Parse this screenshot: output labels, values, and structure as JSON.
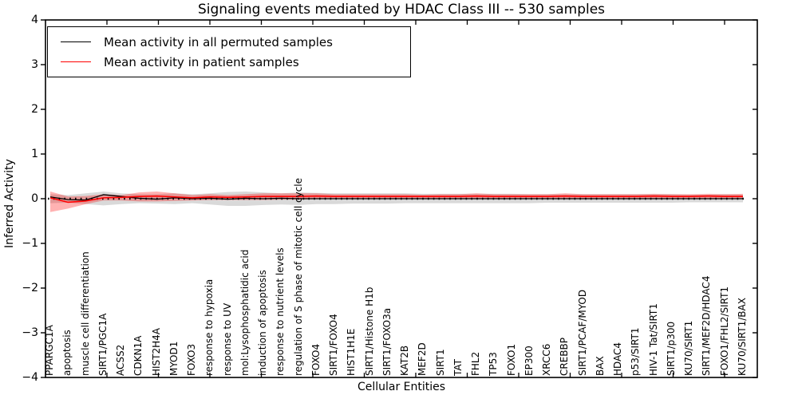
{
  "figure": {
    "title": "Signaling events mediated by HDAC Class III -- 530 samples",
    "xlabel": "Cellular Entities",
    "ylabel": "Inferred Activity"
  },
  "legend": {
    "entries": [
      {
        "label": "Mean activity in all permuted samples",
        "color": "#000000"
      },
      {
        "label": "Mean activity in patient samples",
        "color": "#ff0000"
      }
    ]
  },
  "chart_data": {
    "type": "line",
    "title": "Signaling events mediated by HDAC Class III -- 530 samples",
    "xlabel": "Cellular Entities",
    "ylabel": "Inferred Activity",
    "ylim": [
      -4,
      4
    ],
    "yticks": [
      -4,
      -3,
      -2,
      -1,
      0,
      1,
      2,
      3,
      4
    ],
    "grid": false,
    "zero_line": true,
    "legend_position": "upper left",
    "categories": [
      "PPARGC1A",
      "apoptosis",
      "muscle cell differentiation",
      "SIRT1/PGC1A",
      "ACSS2",
      "CDKN1A",
      "HIST2H4A",
      "MYOD1",
      "FOXO3",
      "response to hypoxia",
      "response to UV",
      "mol:Lysophosphatidic acid",
      "induction of apoptosis",
      "response to nutrient levels",
      "regulation of S phase of mitotic cell cycle",
      "FOXO4",
      "SIRT1/FOXO4",
      "HIST1H1E",
      "SIRT1/Histone H1b",
      "SIRT1/FOXO3a",
      "KAT2B",
      "MEF2D",
      "SIRT1",
      "TAT",
      "FHL2",
      "TP53",
      "FOXO1",
      "EP300",
      "XRCC6",
      "CREBBP",
      "SIRT1/PCAF/MYOD",
      "BAX",
      "HDAC4",
      "p53/SIRT1",
      "HIV-1 Tat/SIRT1",
      "SIRT1/p300",
      "KU70/SIRT1",
      "SIRT1/MEF2D/HDAC4",
      "FOXO1/FHL2/SIRT1",
      "KU70/SIRT1/BAX"
    ],
    "series": [
      {
        "name": "Mean activity in all permuted samples",
        "color": "#000000",
        "values": [
          0.04,
          -0.02,
          -0.03,
          0.09,
          0.05,
          0.01,
          -0.01,
          0.02,
          0.0,
          0.01,
          -0.01,
          0.01,
          0.0,
          0.01,
          0.0,
          0.0,
          0.0,
          0.0,
          0.0,
          0.0,
          0.0,
          0.0,
          0.0,
          0.0,
          0.0,
          0.0,
          0.0,
          0.0,
          0.0,
          0.0,
          0.0,
          0.0,
          0.0,
          0.0,
          0.0,
          0.0,
          0.0,
          0.0,
          0.0,
          0.0
        ]
      },
      {
        "name": "Mean activity in patient samples",
        "color": "#ff0000",
        "values": [
          0.02,
          -0.08,
          -0.05,
          0.02,
          0.03,
          0.05,
          0.06,
          0.04,
          0.02,
          0.04,
          0.03,
          0.04,
          0.05,
          0.05,
          0.05,
          0.06,
          0.05,
          0.05,
          0.05,
          0.05,
          0.05,
          0.05,
          0.05,
          0.05,
          0.06,
          0.05,
          0.05,
          0.05,
          0.05,
          0.06,
          0.05,
          0.05,
          0.05,
          0.05,
          0.06,
          0.05,
          0.05,
          0.06,
          0.05,
          0.05
        ]
      }
    ],
    "bands": [
      {
        "name": "permuted-sample-range",
        "fill": "rgba(120,120,120,0.28)",
        "upper": [
          0.1,
          0.08,
          0.12,
          0.16,
          0.12,
          0.1,
          0.1,
          0.12,
          0.1,
          0.12,
          0.15,
          0.16,
          0.14,
          0.12,
          0.14,
          0.13,
          0.12,
          0.12,
          0.12,
          0.12,
          0.12,
          0.11,
          0.11,
          0.11,
          0.11,
          0.11,
          0.11,
          0.1,
          0.1,
          0.1,
          0.1,
          0.1,
          0.1,
          0.1,
          0.1,
          0.1,
          0.09,
          0.09,
          0.1,
          0.09
        ],
        "lower": [
          -0.1,
          -0.09,
          -0.12,
          -0.15,
          -0.12,
          -0.1,
          -0.11,
          -0.12,
          -0.1,
          -0.13,
          -0.16,
          -0.16,
          -0.14,
          -0.13,
          -0.14,
          -0.12,
          -0.12,
          -0.11,
          -0.11,
          -0.11,
          -0.1,
          -0.1,
          -0.1,
          -0.1,
          -0.1,
          -0.1,
          -0.1,
          -0.1,
          -0.09,
          -0.09,
          -0.09,
          -0.09,
          -0.09,
          -0.09,
          -0.09,
          -0.09,
          -0.08,
          -0.08,
          -0.08,
          -0.08
        ]
      },
      {
        "name": "patient-sample-range",
        "fill": "rgba(255,0,0,0.30)",
        "upper": [
          0.16,
          0.05,
          0.06,
          0.1,
          0.08,
          0.14,
          0.16,
          0.12,
          0.08,
          0.1,
          0.08,
          0.1,
          0.12,
          0.12,
          0.12,
          0.12,
          0.1,
          0.1,
          0.1,
          0.1,
          0.1,
          0.09,
          0.1,
          0.1,
          0.12,
          0.1,
          0.1,
          0.1,
          0.1,
          0.12,
          0.1,
          0.1,
          0.1,
          0.1,
          0.11,
          0.1,
          0.1,
          0.11,
          0.1,
          0.11
        ],
        "lower": [
          -0.3,
          -0.22,
          -0.12,
          -0.04,
          -0.04,
          -0.06,
          -0.06,
          -0.05,
          -0.04,
          -0.03,
          -0.03,
          -0.03,
          -0.03,
          -0.02,
          -0.02,
          -0.01,
          -0.01,
          -0.01,
          -0.01,
          -0.01,
          0.0,
          0.0,
          0.0,
          0.0,
          0.0,
          0.0,
          0.0,
          0.0,
          0.0,
          0.0,
          0.0,
          0.0,
          0.0,
          0.0,
          0.0,
          0.0,
          0.0,
          0.0,
          0.0,
          0.0
        ]
      }
    ]
  },
  "colors": {
    "axis": "#000000",
    "permuted_line": "#000000",
    "patient_line": "#ff0000",
    "background": "#ffffff"
  }
}
